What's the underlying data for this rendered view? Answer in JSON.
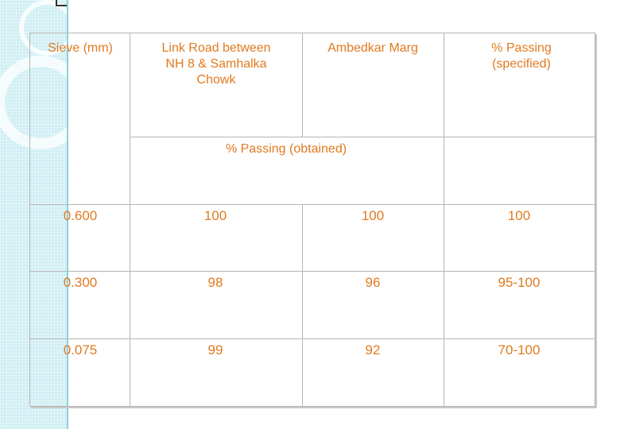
{
  "table": {
    "headers": {
      "sieve": "Sieve (mm)",
      "link_road": "Link Road between NH 8 & Samhalka Chowk",
      "ambedkar": "Ambedkar Marg",
      "specified": "% Passing (specified)",
      "obtained": "% Passing (obtained)"
    },
    "rows": [
      {
        "sieve": "0.600",
        "link_road": "100",
        "ambedkar": "100",
        "specified": "100"
      },
      {
        "sieve": "0.300",
        "link_road": "98",
        "ambedkar": "96",
        "specified": "95-100"
      },
      {
        "sieve": "0.075",
        "link_road": "99",
        "ambedkar": "92",
        "specified": "70-100"
      }
    ]
  },
  "colors": {
    "text": "#e07a1f",
    "grid": "#b5b5b5",
    "strip": "#cfeef3"
  }
}
